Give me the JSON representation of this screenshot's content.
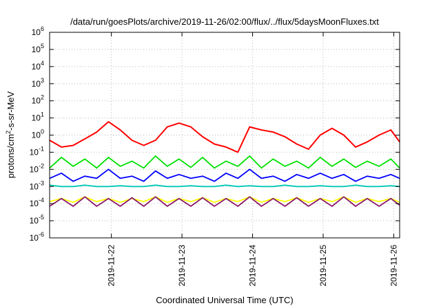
{
  "chart_data": {
    "type": "line",
    "title": "/data/run/goesPlots/archive/2019-11-26/02:00/flux/../flux/5daysMoonFluxes.txt",
    "xlabel": "Coordinated Universal Time (UTC)",
    "ylabel": {
      "base": "protons/cm",
      "exp": "2",
      "rest": "-s-sr-MeV"
    },
    "yscale": "log",
    "ylim": [
      1e-06,
      1000000.0
    ],
    "yticks": [
      {
        "base": "10",
        "exp": "-6"
      },
      {
        "base": "10",
        "exp": "-5"
      },
      {
        "base": "10",
        "exp": "-4"
      },
      {
        "base": "10",
        "exp": "-3"
      },
      {
        "base": "10",
        "exp": "-2"
      },
      {
        "base": "10",
        "exp": "-1"
      },
      {
        "base": "10",
        "exp": "0"
      },
      {
        "base": "10",
        "exp": "1"
      },
      {
        "base": "10",
        "exp": "2"
      },
      {
        "base": "10",
        "exp": "3"
      },
      {
        "base": "10",
        "exp": "4"
      },
      {
        "base": "10",
        "exp": "5"
      },
      {
        "base": "10",
        "exp": "6"
      }
    ],
    "xlim": [
      "2019-11-21T03:00",
      "2019-11-26T02:00"
    ],
    "xticks": [
      "2019-11-22",
      "2019-11-23",
      "2019-11-24",
      "2019-11-25",
      "2019-11-26"
    ],
    "grid": true,
    "series": [
      {
        "color": "#ff0000",
        "x": [
          "2019-11-21T03:00",
          "2019-11-21T07:00",
          "2019-11-21T11:00",
          "2019-11-21T15:00",
          "2019-11-21T19:00",
          "2019-11-21T23:00",
          "2019-11-22T03:00",
          "2019-11-22T07:00",
          "2019-11-22T11:00",
          "2019-11-22T15:00",
          "2019-11-22T19:00",
          "2019-11-22T23:00",
          "2019-11-23T03:00",
          "2019-11-23T07:00",
          "2019-11-23T11:00",
          "2019-11-23T15:00",
          "2019-11-23T19:00",
          "2019-11-23T23:00",
          "2019-11-24T03:00",
          "2019-11-24T07:00",
          "2019-11-24T11:00",
          "2019-11-24T15:00",
          "2019-11-24T19:00",
          "2019-11-24T23:00",
          "2019-11-25T03:00",
          "2019-11-25T07:00",
          "2019-11-25T11:00",
          "2019-11-25T15:00",
          "2019-11-25T19:00",
          "2019-11-25T23:00",
          "2019-11-26T02:00"
        ],
        "y": [
          0.5,
          0.2,
          0.25,
          0.6,
          1.5,
          6,
          2,
          0.5,
          0.25,
          0.5,
          3,
          5,
          3,
          0.8,
          0.3,
          0.2,
          0.1,
          3,
          2,
          1.5,
          0.8,
          0.3,
          0.15,
          1,
          2.5,
          1,
          0.2,
          0.4,
          1,
          2,
          0.4
        ]
      },
      {
        "color": "#00e000",
        "x": [
          "2019-11-21T03:00",
          "2019-11-21T07:00",
          "2019-11-21T11:00",
          "2019-11-21T15:00",
          "2019-11-21T19:00",
          "2019-11-21T23:00",
          "2019-11-22T03:00",
          "2019-11-22T07:00",
          "2019-11-22T11:00",
          "2019-11-22T15:00",
          "2019-11-22T19:00",
          "2019-11-22T23:00",
          "2019-11-23T03:00",
          "2019-11-23T07:00",
          "2019-11-23T11:00",
          "2019-11-23T15:00",
          "2019-11-23T19:00",
          "2019-11-23T23:00",
          "2019-11-24T03:00",
          "2019-11-24T07:00",
          "2019-11-24T11:00",
          "2019-11-24T15:00",
          "2019-11-24T19:00",
          "2019-11-24T23:00",
          "2019-11-25T03:00",
          "2019-11-25T07:00",
          "2019-11-25T11:00",
          "2019-11-25T15:00",
          "2019-11-25T19:00",
          "2019-11-25T23:00",
          "2019-11-26T02:00"
        ],
        "y": [
          0.012,
          0.05,
          0.015,
          0.04,
          0.012,
          0.05,
          0.015,
          0.03,
          0.012,
          0.06,
          0.015,
          0.04,
          0.013,
          0.05,
          0.012,
          0.03,
          0.015,
          0.06,
          0.012,
          0.04,
          0.015,
          0.03,
          0.012,
          0.05,
          0.015,
          0.04,
          0.013,
          0.03,
          0.015,
          0.04,
          0.012
        ]
      },
      {
        "color": "#0000ff",
        "x": [
          "2019-11-21T03:00",
          "2019-11-21T07:00",
          "2019-11-21T11:00",
          "2019-11-21T15:00",
          "2019-11-21T19:00",
          "2019-11-21T23:00",
          "2019-11-22T03:00",
          "2019-11-22T07:00",
          "2019-11-22T11:00",
          "2019-11-22T15:00",
          "2019-11-22T19:00",
          "2019-11-22T23:00",
          "2019-11-23T03:00",
          "2019-11-23T07:00",
          "2019-11-23T11:00",
          "2019-11-23T15:00",
          "2019-11-23T19:00",
          "2019-11-23T23:00",
          "2019-11-24T03:00",
          "2019-11-24T07:00",
          "2019-11-24T11:00",
          "2019-11-24T15:00",
          "2019-11-24T19:00",
          "2019-11-24T23:00",
          "2019-11-25T03:00",
          "2019-11-25T07:00",
          "2019-11-25T11:00",
          "2019-11-25T15:00",
          "2019-11-25T19:00",
          "2019-11-25T23:00",
          "2019-11-26T02:00"
        ],
        "y": [
          0.003,
          0.006,
          0.002,
          0.004,
          0.003,
          0.01,
          0.003,
          0.004,
          0.002,
          0.008,
          0.003,
          0.005,
          0.003,
          0.004,
          0.002,
          0.006,
          0.003,
          0.01,
          0.003,
          0.004,
          0.002,
          0.005,
          0.003,
          0.006,
          0.003,
          0.005,
          0.002,
          0.004,
          0.003,
          0.005,
          0.003
        ]
      },
      {
        "color": "#00c8b4",
        "x": [
          "2019-11-21T03:00",
          "2019-11-21T07:00",
          "2019-11-21T11:00",
          "2019-11-21T15:00",
          "2019-11-21T19:00",
          "2019-11-21T23:00",
          "2019-11-22T03:00",
          "2019-11-22T07:00",
          "2019-11-22T11:00",
          "2019-11-22T15:00",
          "2019-11-22T19:00",
          "2019-11-22T23:00",
          "2019-11-23T03:00",
          "2019-11-23T07:00",
          "2019-11-23T11:00",
          "2019-11-23T15:00",
          "2019-11-23T19:00",
          "2019-11-23T23:00",
          "2019-11-24T03:00",
          "2019-11-24T07:00",
          "2019-11-24T11:00",
          "2019-11-24T15:00",
          "2019-11-24T19:00",
          "2019-11-24T23:00",
          "2019-11-25T03:00",
          "2019-11-25T07:00",
          "2019-11-25T11:00",
          "2019-11-25T15:00",
          "2019-11-25T19:00",
          "2019-11-25T23:00",
          "2019-11-26T02:00"
        ],
        "y": [
          0.0012,
          0.001,
          0.001,
          0.0012,
          0.001,
          0.001,
          0.0011,
          0.001,
          0.001,
          0.0012,
          0.001,
          0.001,
          0.0011,
          0.001,
          0.001,
          0.0012,
          0.001,
          0.0011,
          0.001,
          0.001,
          0.0012,
          0.001,
          0.001,
          0.0011,
          0.001,
          0.001,
          0.0012,
          0.001,
          0.001,
          0.0011,
          0.001
        ]
      },
      {
        "color": "#ffff00",
        "x": [
          "2019-11-21T03:00",
          "2019-11-21T07:00",
          "2019-11-21T11:00",
          "2019-11-21T15:00",
          "2019-11-21T19:00",
          "2019-11-21T23:00",
          "2019-11-22T03:00",
          "2019-11-22T07:00",
          "2019-11-22T11:00",
          "2019-11-22T15:00",
          "2019-11-22T19:00",
          "2019-11-22T23:00",
          "2019-11-23T03:00",
          "2019-11-23T07:00",
          "2019-11-23T11:00",
          "2019-11-23T15:00",
          "2019-11-23T19:00",
          "2019-11-23T23:00",
          "2019-11-24T03:00",
          "2019-11-24T07:00",
          "2019-11-24T11:00",
          "2019-11-24T15:00",
          "2019-11-24T19:00",
          "2019-11-24T23:00",
          "2019-11-25T03:00",
          "2019-11-25T07:00",
          "2019-11-25T11:00",
          "2019-11-25T15:00",
          "2019-11-25T19:00",
          "2019-11-25T23:00",
          "2019-11-26T02:00"
        ],
        "y": [
          0.00013,
          0.0002,
          0.00012,
          0.00025,
          0.00013,
          0.0002,
          0.00012,
          0.0002,
          0.00013,
          0.00025,
          0.00012,
          0.0002,
          0.00013,
          0.00022,
          0.00012,
          0.0002,
          0.00013,
          0.00025,
          0.00012,
          0.0002,
          0.00013,
          0.00022,
          0.00012,
          0.0002,
          0.00013,
          0.00025,
          0.00012,
          0.0002,
          0.00013,
          0.0002,
          0.00012
        ]
      },
      {
        "color": "#8b1a6b",
        "x": [
          "2019-11-21T03:00",
          "2019-11-21T07:00",
          "2019-11-21T11:00",
          "2019-11-21T15:00",
          "2019-11-21T19:00",
          "2019-11-21T23:00",
          "2019-11-22T03:00",
          "2019-11-22T07:00",
          "2019-11-22T11:00",
          "2019-11-22T15:00",
          "2019-11-22T19:00",
          "2019-11-22T23:00",
          "2019-11-23T03:00",
          "2019-11-23T07:00",
          "2019-11-23T11:00",
          "2019-11-23T15:00",
          "2019-11-23T19:00",
          "2019-11-23T23:00",
          "2019-11-24T03:00",
          "2019-11-24T07:00",
          "2019-11-24T11:00",
          "2019-11-24T15:00",
          "2019-11-24T19:00",
          "2019-11-24T23:00",
          "2019-11-25T03:00",
          "2019-11-25T07:00",
          "2019-11-25T11:00",
          "2019-11-25T15:00",
          "2019-11-25T19:00",
          "2019-11-25T23:00",
          "2019-11-26T02:00"
        ],
        "y": [
          7e-05,
          0.0002,
          7e-05,
          0.00025,
          7e-05,
          0.0002,
          7e-05,
          0.00022,
          7e-05,
          0.00025,
          7e-05,
          0.0002,
          7e-05,
          0.00022,
          7e-05,
          0.0002,
          7e-05,
          0.00025,
          7e-05,
          0.0002,
          7e-05,
          0.00022,
          7e-05,
          0.0002,
          7e-05,
          0.00025,
          7e-05,
          0.0002,
          7e-05,
          0.0002,
          8e-05
        ]
      }
    ]
  }
}
